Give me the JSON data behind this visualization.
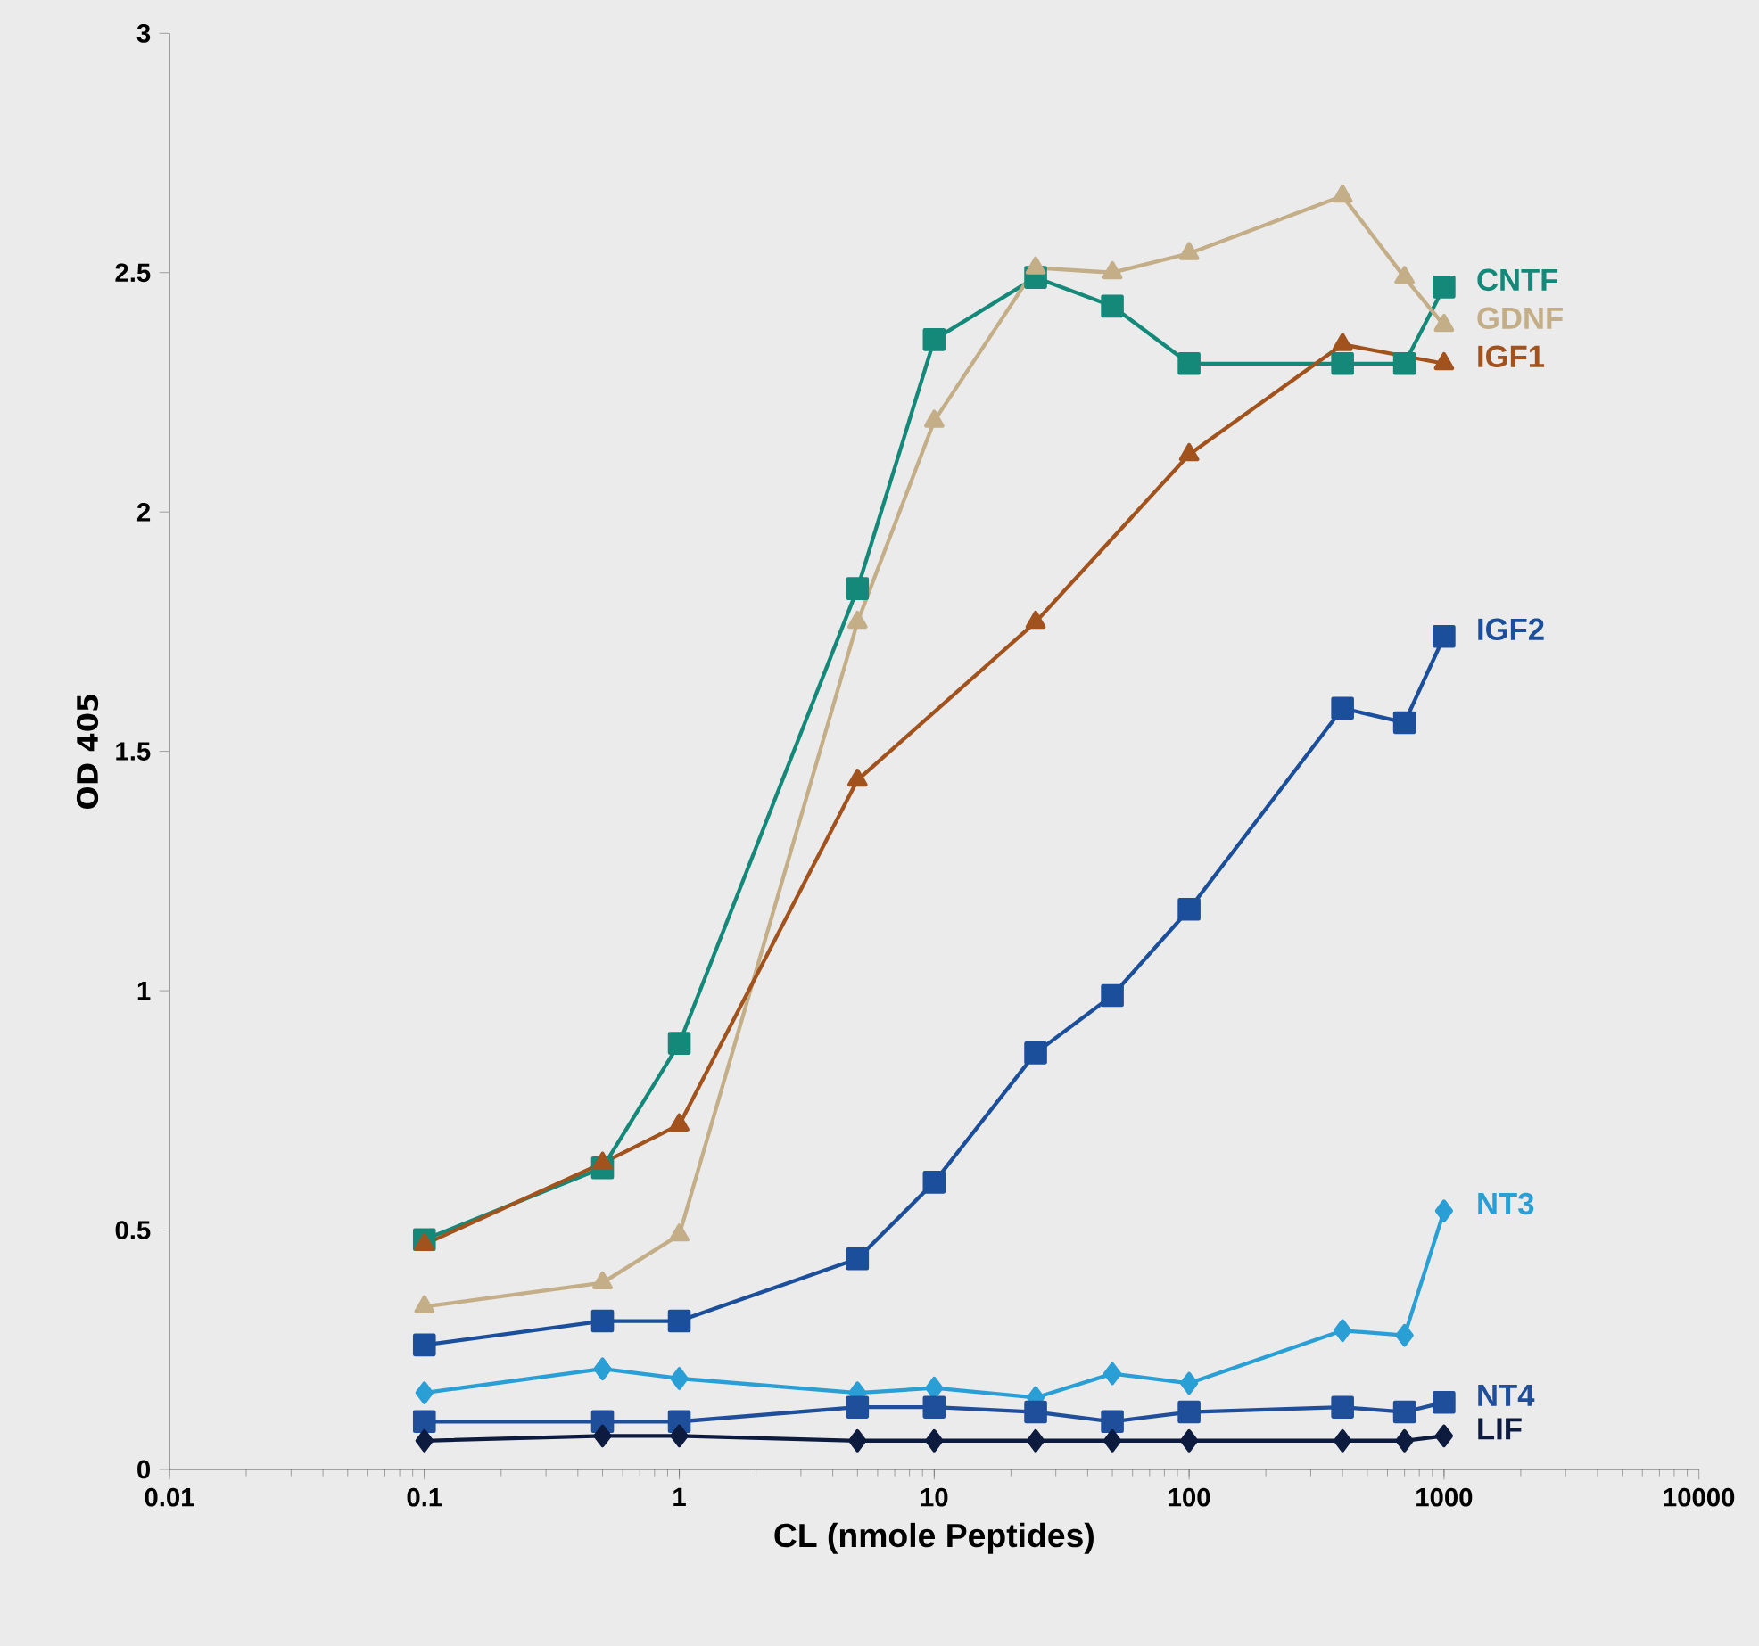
{
  "chart_data": {
    "type": "line",
    "xlabel": "CL (nmole Peptides)",
    "ylabel": "OD 405",
    "log": "x",
    "x": [
      0.1,
      0.5,
      1,
      5,
      10,
      25,
      50,
      100,
      400,
      700,
      1000
    ],
    "xlim": [
      0.01,
      10000
    ],
    "xticks": [
      0.01,
      0.1,
      1,
      10,
      100,
      1000,
      10000
    ],
    "ylim": [
      0,
      3
    ],
    "yticks": [
      0,
      0.5,
      1,
      1.5,
      2,
      2.5,
      3
    ],
    "grid": false,
    "legend": false,
    "series": [
      {
        "name": "CNTF",
        "color": "#14897a",
        "marker": "square",
        "values": [
          0.48,
          0.63,
          0.89,
          1.84,
          2.36,
          2.49,
          2.43,
          2.31,
          2.31,
          2.31,
          2.47
        ]
      },
      {
        "name": "GDNF",
        "color": "#c4ae88",
        "marker": "triangle",
        "values": [
          0.34,
          0.39,
          0.49,
          1.77,
          2.19,
          2.51,
          2.5,
          2.54,
          2.66,
          2.49,
          2.39
        ]
      },
      {
        "name": "IGF1",
        "color": "#a2521c",
        "marker": "triangle",
        "x": [
          0.1,
          0.5,
          1,
          5,
          25,
          100,
          400,
          1000
        ],
        "values": [
          0.47,
          0.64,
          0.72,
          1.44,
          1.77,
          2.12,
          2.35,
          2.31
        ]
      },
      {
        "name": "IGF2",
        "color": "#1b4f9c",
        "marker": "square",
        "values": [
          0.26,
          0.31,
          0.31,
          0.44,
          0.6,
          0.87,
          0.99,
          1.17,
          1.59,
          1.56,
          1.74
        ]
      },
      {
        "name": "NT3",
        "color": "#2a9fd6",
        "marker": "diamond",
        "values": [
          0.16,
          0.21,
          0.19,
          0.16,
          0.17,
          0.15,
          0.2,
          0.18,
          0.29,
          0.28,
          0.54
        ]
      },
      {
        "name": "NT4",
        "color": "#1f4e9a",
        "marker": "square",
        "values": [
          0.1,
          0.1,
          0.1,
          0.13,
          0.13,
          0.12,
          0.1,
          0.12,
          0.13,
          0.12,
          0.14
        ]
      },
      {
        "name": "LIF",
        "color": "#0d1b3e",
        "marker": "diamond",
        "values": [
          0.06,
          0.07,
          0.07,
          0.06,
          0.06,
          0.06,
          0.06,
          0.06,
          0.06,
          0.06,
          0.07
        ]
      }
    ]
  }
}
